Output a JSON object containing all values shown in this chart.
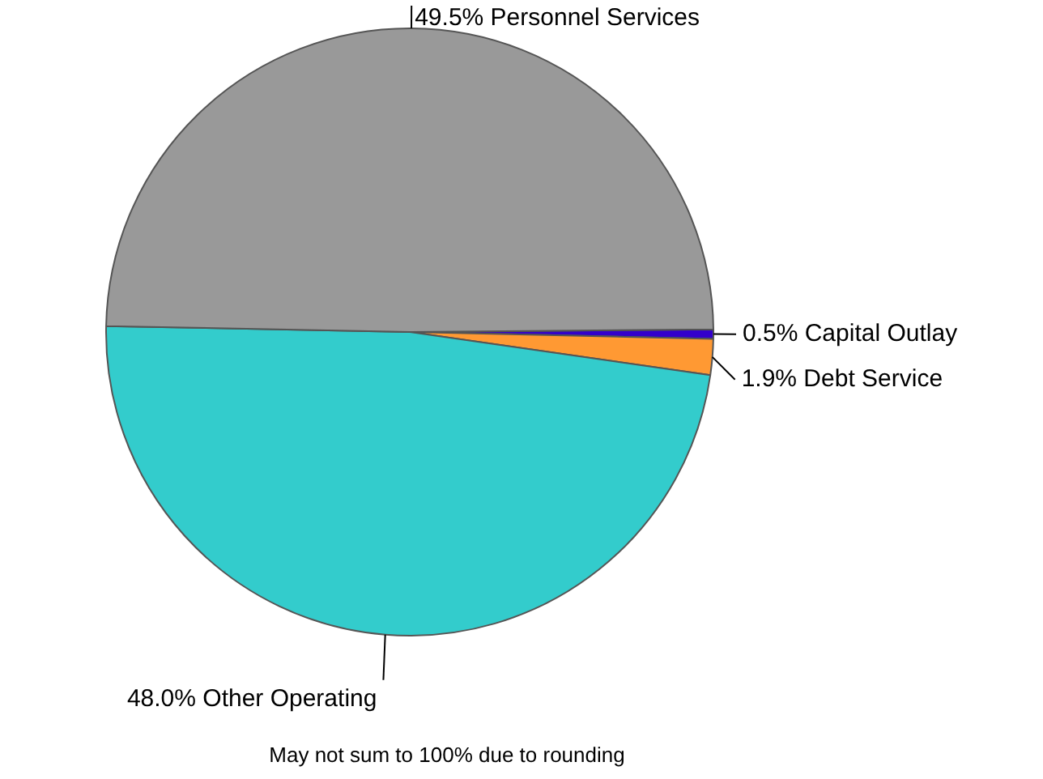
{
  "chart_data": {
    "type": "pie",
    "categories": [
      "Capital Outlay",
      "Debt Service",
      "Other Operating",
      "Personnel Services"
    ],
    "values": [
      0.5,
      1.9,
      48.0,
      49.5
    ],
    "value_labels": [
      "0.5%",
      "1.9%",
      "48.0%",
      "49.5%"
    ],
    "colors": [
      "#3300cc",
      "#ff9933",
      "#33cccc",
      "#999999"
    ],
    "legend": false,
    "annotations": [
      "May not sum to 100% due to rounding"
    ]
  }
}
